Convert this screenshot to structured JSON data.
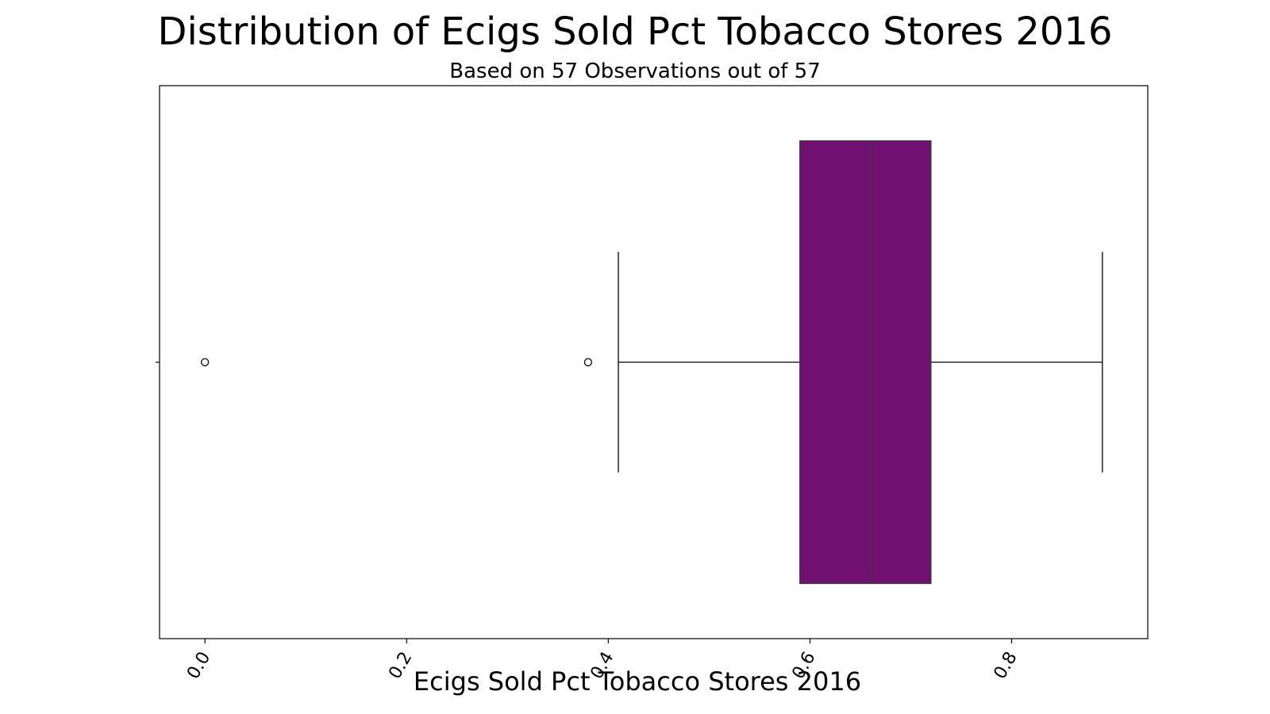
{
  "chart_data": {
    "type": "box",
    "title": "Distribution of Ecigs Sold Pct Tobacco Stores 2016",
    "subtitle": "Based on 57 Observations out of 57",
    "xlabel": "Ecigs Sold Pct Tobacco Stores 2016",
    "ylabel": "",
    "xlim": [
      -0.045,
      0.935
    ],
    "xticks": [
      0.0,
      0.2,
      0.4,
      0.6,
      0.8
    ],
    "xtick_labels": [
      "0.0",
      "0.2",
      "0.4",
      "0.6",
      "0.8"
    ],
    "tick_rotation": 60,
    "orientation": "horizontal",
    "color": "#701070",
    "box": {
      "whisker_low": 0.41,
      "q1": 0.59,
      "median": 0.66,
      "q3": 0.72,
      "whisker_high": 0.89,
      "outliers": [
        0.0,
        0.38
      ]
    },
    "grid": false,
    "legend": "none"
  }
}
